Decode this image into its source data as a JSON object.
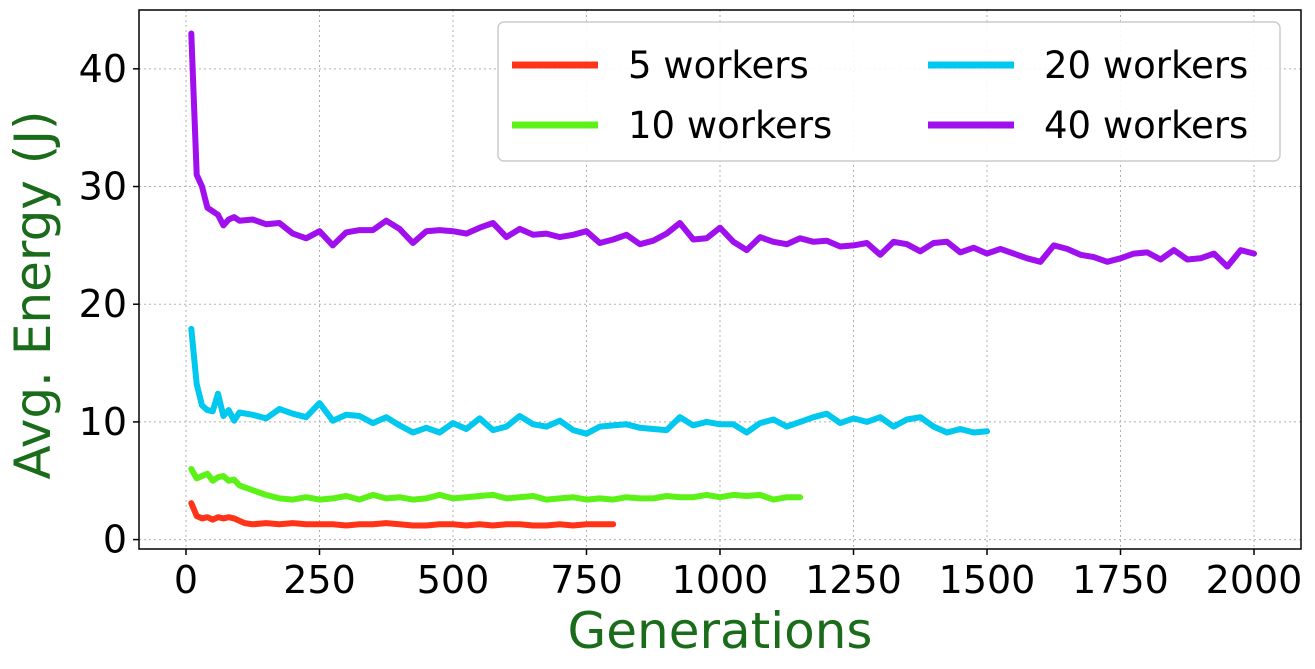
{
  "chart_data": {
    "type": "line",
    "title": "",
    "xlabel": "Generations",
    "ylabel": "Avg. Energy (J)",
    "xlim": [
      -88,
      2088
    ],
    "ylim": [
      -0.8,
      45
    ],
    "xticks": [
      0,
      250,
      500,
      750,
      1000,
      1250,
      1500,
      1750,
      2000
    ],
    "yticks": [
      0,
      10,
      20,
      30,
      40
    ],
    "grid": true,
    "legend": {
      "placement": "top-right",
      "columns": 2
    },
    "axis_label_color": "#1a6b1a",
    "series": [
      {
        "name": "5 workers",
        "color": "#ff3318",
        "x": [
          10,
          20,
          30,
          40,
          50,
          60,
          70,
          80,
          90,
          100,
          110,
          125,
          150,
          175,
          200,
          225,
          250,
          275,
          300,
          325,
          350,
          375,
          400,
          425,
          450,
          475,
          500,
          525,
          550,
          575,
          600,
          625,
          650,
          675,
          700,
          725,
          750,
          775,
          800
        ],
        "y": [
          3.1,
          2.0,
          1.8,
          1.9,
          1.7,
          1.9,
          1.8,
          1.9,
          1.8,
          1.6,
          1.4,
          1.3,
          1.4,
          1.3,
          1.4,
          1.3,
          1.3,
          1.3,
          1.2,
          1.3,
          1.3,
          1.4,
          1.3,
          1.2,
          1.2,
          1.3,
          1.3,
          1.2,
          1.3,
          1.2,
          1.3,
          1.3,
          1.2,
          1.2,
          1.3,
          1.2,
          1.3,
          1.3,
          1.3
        ]
      },
      {
        "name": "10 workers",
        "color": "#5cf218",
        "x": [
          10,
          20,
          30,
          40,
          50,
          60,
          70,
          80,
          90,
          100,
          125,
          150,
          175,
          200,
          225,
          250,
          275,
          300,
          325,
          350,
          375,
          400,
          425,
          450,
          475,
          500,
          525,
          550,
          575,
          600,
          625,
          650,
          675,
          700,
          725,
          750,
          775,
          800,
          825,
          850,
          875,
          900,
          925,
          950,
          975,
          1000,
          1025,
          1050,
          1075,
          1100,
          1125,
          1150
        ],
        "y": [
          6.0,
          5.2,
          5.4,
          5.6,
          5.0,
          5.3,
          5.4,
          5.0,
          5.1,
          4.6,
          4.2,
          3.8,
          3.5,
          3.4,
          3.6,
          3.4,
          3.5,
          3.7,
          3.4,
          3.8,
          3.5,
          3.6,
          3.4,
          3.5,
          3.8,
          3.5,
          3.6,
          3.7,
          3.8,
          3.5,
          3.6,
          3.7,
          3.4,
          3.5,
          3.6,
          3.4,
          3.5,
          3.4,
          3.6,
          3.5,
          3.5,
          3.7,
          3.6,
          3.6,
          3.8,
          3.6,
          3.8,
          3.7,
          3.8,
          3.4,
          3.6,
          3.6
        ]
      },
      {
        "name": "20 workers",
        "color": "#00c8ee",
        "x": [
          10,
          20,
          30,
          40,
          50,
          60,
          70,
          80,
          90,
          100,
          125,
          150,
          175,
          200,
          225,
          250,
          275,
          300,
          325,
          350,
          375,
          400,
          425,
          450,
          475,
          500,
          525,
          550,
          575,
          600,
          625,
          650,
          675,
          700,
          725,
          750,
          775,
          800,
          825,
          850,
          875,
          900,
          925,
          950,
          975,
          1000,
          1025,
          1050,
          1075,
          1100,
          1125,
          1150,
          1175,
          1200,
          1225,
          1250,
          1275,
          1300,
          1325,
          1350,
          1375,
          1400,
          1425,
          1450,
          1475,
          1500
        ],
        "y": [
          17.9,
          13.2,
          11.4,
          11.0,
          10.9,
          12.4,
          10.5,
          11.0,
          10.1,
          10.8,
          10.6,
          10.3,
          11.1,
          10.7,
          10.4,
          11.6,
          10.1,
          10.6,
          10.5,
          9.9,
          10.4,
          9.7,
          9.1,
          9.5,
          9.1,
          9.9,
          9.4,
          10.3,
          9.3,
          9.6,
          10.5,
          9.8,
          9.6,
          10.1,
          9.3,
          9.0,
          9.6,
          9.7,
          9.8,
          9.5,
          9.4,
          9.3,
          10.4,
          9.7,
          10.0,
          9.8,
          9.8,
          9.1,
          9.9,
          10.2,
          9.6,
          10.0,
          10.4,
          10.7,
          9.9,
          10.3,
          10.0,
          10.4,
          9.6,
          10.2,
          10.4,
          9.6,
          9.1,
          9.4,
          9.1,
          9.2
        ]
      },
      {
        "name": "40 workers",
        "color": "#a010ee",
        "x": [
          10,
          20,
          30,
          40,
          50,
          60,
          70,
          80,
          90,
          100,
          125,
          150,
          175,
          200,
          225,
          250,
          275,
          300,
          325,
          350,
          375,
          400,
          425,
          450,
          475,
          500,
          525,
          550,
          575,
          600,
          625,
          650,
          675,
          700,
          725,
          750,
          775,
          800,
          825,
          850,
          875,
          900,
          925,
          950,
          975,
          1000,
          1025,
          1050,
          1075,
          1100,
          1125,
          1150,
          1175,
          1200,
          1225,
          1250,
          1275,
          1300,
          1325,
          1350,
          1375,
          1400,
          1425,
          1450,
          1475,
          1500,
          1525,
          1550,
          1575,
          1600,
          1625,
          1650,
          1675,
          1700,
          1725,
          1750,
          1775,
          1800,
          1825,
          1850,
          1875,
          1900,
          1925,
          1950,
          1975,
          2000
        ],
        "y": [
          43.0,
          31.0,
          30.0,
          28.2,
          27.9,
          27.6,
          26.7,
          27.2,
          27.4,
          27.1,
          27.2,
          26.8,
          26.9,
          26.0,
          25.6,
          26.2,
          25.0,
          26.1,
          26.3,
          26.3,
          27.1,
          26.4,
          25.2,
          26.2,
          26.3,
          26.2,
          26.0,
          26.5,
          26.9,
          25.7,
          26.4,
          25.9,
          26.0,
          25.7,
          25.9,
          26.2,
          25.2,
          25.5,
          25.9,
          25.1,
          25.4,
          26.0,
          26.9,
          25.5,
          25.6,
          26.5,
          25.3,
          24.6,
          25.7,
          25.3,
          25.1,
          25.6,
          25.3,
          25.4,
          24.9,
          25.0,
          25.2,
          24.2,
          25.3,
          25.1,
          24.5,
          25.2,
          25.3,
          24.4,
          24.8,
          24.3,
          24.7,
          24.3,
          23.9,
          23.6,
          25.0,
          24.7,
          24.2,
          24.0,
          23.6,
          23.9,
          24.3,
          24.4,
          23.8,
          24.6,
          23.8,
          23.9,
          24.3,
          23.2,
          24.6,
          24.3
        ]
      }
    ]
  }
}
